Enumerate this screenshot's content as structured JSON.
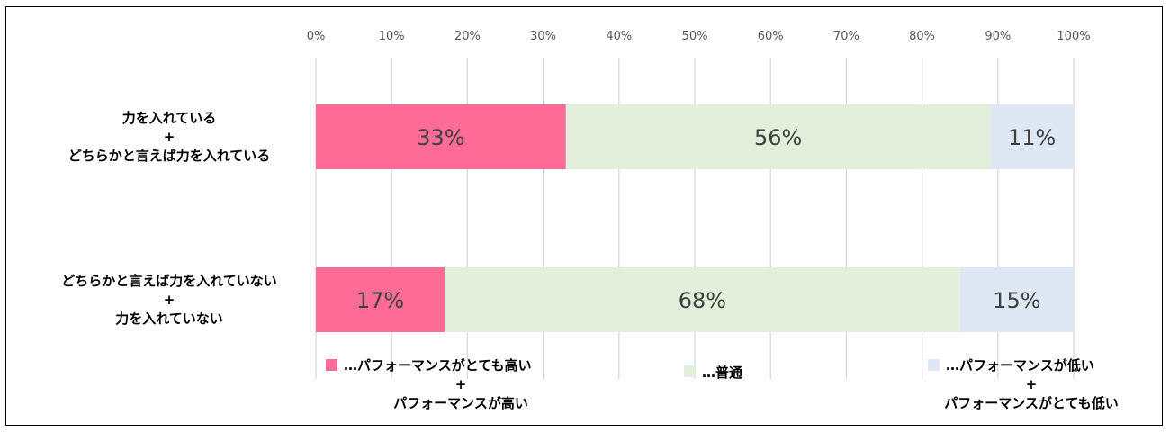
{
  "chart_data": {
    "type": "bar",
    "orientation": "horizontal",
    "stacked": true,
    "percent": true,
    "xlim": [
      0,
      100
    ],
    "x_ticks": [
      "0%",
      "10%",
      "20%",
      "30%",
      "40%",
      "50%",
      "60%",
      "70%",
      "80%",
      "90%",
      "100%"
    ],
    "grid": true,
    "legend_position": "bottom",
    "categories": [
      [
        "力を入れている",
        "+",
        "どちらかと言えば力を入れている"
      ],
      [
        "どちらかと言えば力を入れていない",
        "+",
        "力を入れていない"
      ]
    ],
    "series": [
      {
        "name": [
          "…パフォーマンスがとても高い",
          "+",
          "パフォーマンスが高い"
        ],
        "color": "#ff6b97",
        "values": [
          33,
          17
        ],
        "labels": [
          "33%",
          "17%"
        ]
      },
      {
        "name": [
          "…普通"
        ],
        "color": "#e2efda",
        "values": [
          56,
          68
        ],
        "labels": [
          "56%",
          "68%"
        ]
      },
      {
        "name": [
          "…パフォーマンスが低い",
          "+",
          "パフォーマンスがとても低い"
        ],
        "color": "#dde8f4",
        "values": [
          11,
          15
        ],
        "labels": [
          "11%",
          "15%"
        ]
      }
    ]
  }
}
